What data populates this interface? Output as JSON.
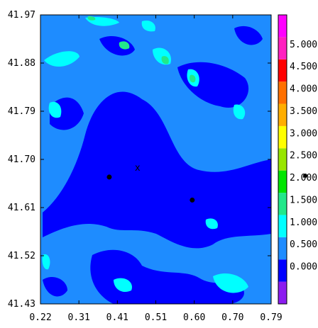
{
  "chart_data": {
    "type": "heatmap",
    "title": "",
    "xlabel": "",
    "ylabel": "",
    "x_ticks": [
      "0.22",
      "0.31",
      "0.41",
      "0.51",
      "0.60",
      "0.70",
      "0.79"
    ],
    "y_ticks": [
      "41.97",
      "41.88",
      "41.79",
      "41.70",
      "41.61",
      "41.52",
      "41.43"
    ],
    "xlim": [
      0.22,
      0.79
    ],
    "ylim": [
      41.43,
      41.97
    ],
    "points": [
      {
        "name": "dot",
        "x": 0.39,
        "y": 41.667
      },
      {
        "name": "dot",
        "x": 0.595,
        "y": 41.624
      }
    ],
    "marker": {
      "label": "x",
      "x": 0.46,
      "y": 41.684
    },
    "colorbar": {
      "levels": [
        {
          "label": "",
          "color": "#8c1cf0"
        },
        {
          "label": "0.000",
          "color": "#0000ff"
        },
        {
          "label": "0.500",
          "color": "#1e8cff"
        },
        {
          "label": "1.000",
          "color": "#00ffff"
        },
        {
          "label": "1.500",
          "color": "#22e88a"
        },
        {
          "label": "2.000",
          "color": "#00e600"
        },
        {
          "label": "2.500",
          "color": "#98e600"
        },
        {
          "label": "3.000",
          "color": "#ffff00"
        },
        {
          "label": "3.500",
          "color": "#ffae00"
        },
        {
          "label": "4.000",
          "color": "#ff7000"
        },
        {
          "label": "4.500",
          "color": "#ff0000"
        },
        {
          "label": "5.000",
          "color": "#ff20c0"
        },
        {
          "label": "",
          "color": "#ff00ff"
        }
      ]
    }
  }
}
